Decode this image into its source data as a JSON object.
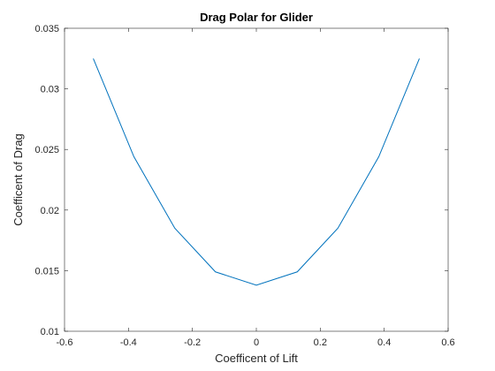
{
  "chart_data": {
    "type": "line",
    "title": "Drag Polar for Glider",
    "xlabel": "Coefficent of Lift",
    "ylabel": "Coefficent of Drag",
    "xlim": [
      -0.6,
      0.6
    ],
    "ylim": [
      0.01,
      0.035
    ],
    "xticks": [
      -0.6,
      -0.4,
      -0.2,
      0,
      0.2,
      0.4,
      0.6
    ],
    "xtick_labels": [
      "-0.6",
      "-0.4",
      "-0.2",
      "0",
      "0.2",
      "0.4",
      "0.6"
    ],
    "yticks": [
      0.01,
      0.015,
      0.02,
      0.025,
      0.03,
      0.035
    ],
    "ytick_labels": [
      "0.01",
      "0.015",
      "0.02",
      "0.025",
      "0.03",
      "0.035"
    ],
    "grid": false,
    "line_color": "#0072BD",
    "series": [
      {
        "x": [
          -0.51,
          -0.383,
          -0.255,
          -0.128,
          0,
          0.128,
          0.255,
          0.383,
          0.51
        ],
        "y": [
          0.0325,
          0.0244,
          0.0185,
          0.0149,
          0.0138,
          0.0149,
          0.0185,
          0.0244,
          0.0325
        ]
      }
    ]
  }
}
